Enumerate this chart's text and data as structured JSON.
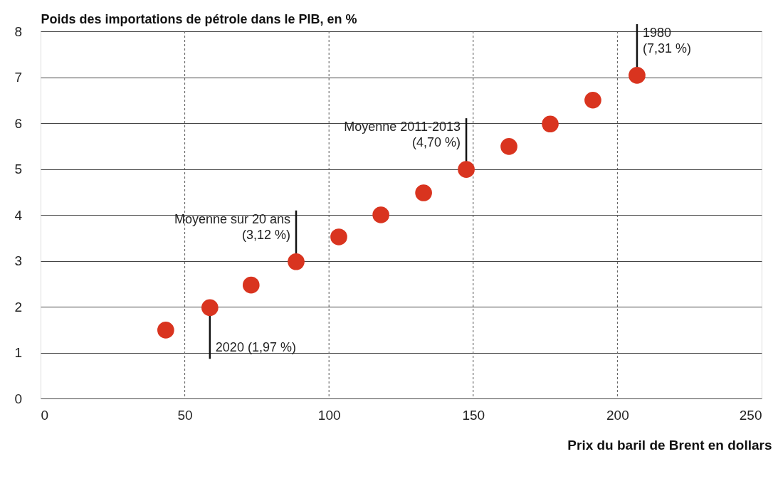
{
  "chart_data": {
    "type": "scatter",
    "xlabel": "Prix du baril de Brent en dollars",
    "ylabel": "Poids des importations de pétrole dans le PIB, en %",
    "x": [
      43.4,
      58.7,
      73,
      88.6,
      103.4,
      118,
      132.8,
      147.6,
      162.4,
      176.7,
      191.5,
      206.8
    ],
    "series": [
      {
        "color": "#d9341f",
        "values": [
          1.49,
          1.98,
          2.47,
          2.98,
          3.52,
          4.0,
          4.48,
          4.99,
          5.49,
          5.98,
          6.5,
          7.04
        ]
      }
    ],
    "xlim": [
      0,
      250
    ],
    "xticks": [
      0,
      50,
      100,
      150,
      200,
      250
    ],
    "ylim": [
      0,
      8
    ],
    "yticks": [
      0,
      1,
      2,
      3,
      4,
      5,
      6,
      7,
      8
    ],
    "grid": true,
    "marker": "circle",
    "annotations": [
      {
        "text": "2020 (1,97 %)",
        "x": 58.7,
        "y": 1.98
      },
      {
        "text": "Moyenne sur 20 ans\n(3,12 %)",
        "x": 88.6,
        "y": 2.98
      },
      {
        "text": "Moyenne 2011-2013\n(4,70 %)",
        "x": 147.6,
        "y": 4.99
      },
      {
        "text": "1980\n(7,31 %)",
        "x": 206.8,
        "y": 7.04
      }
    ]
  }
}
